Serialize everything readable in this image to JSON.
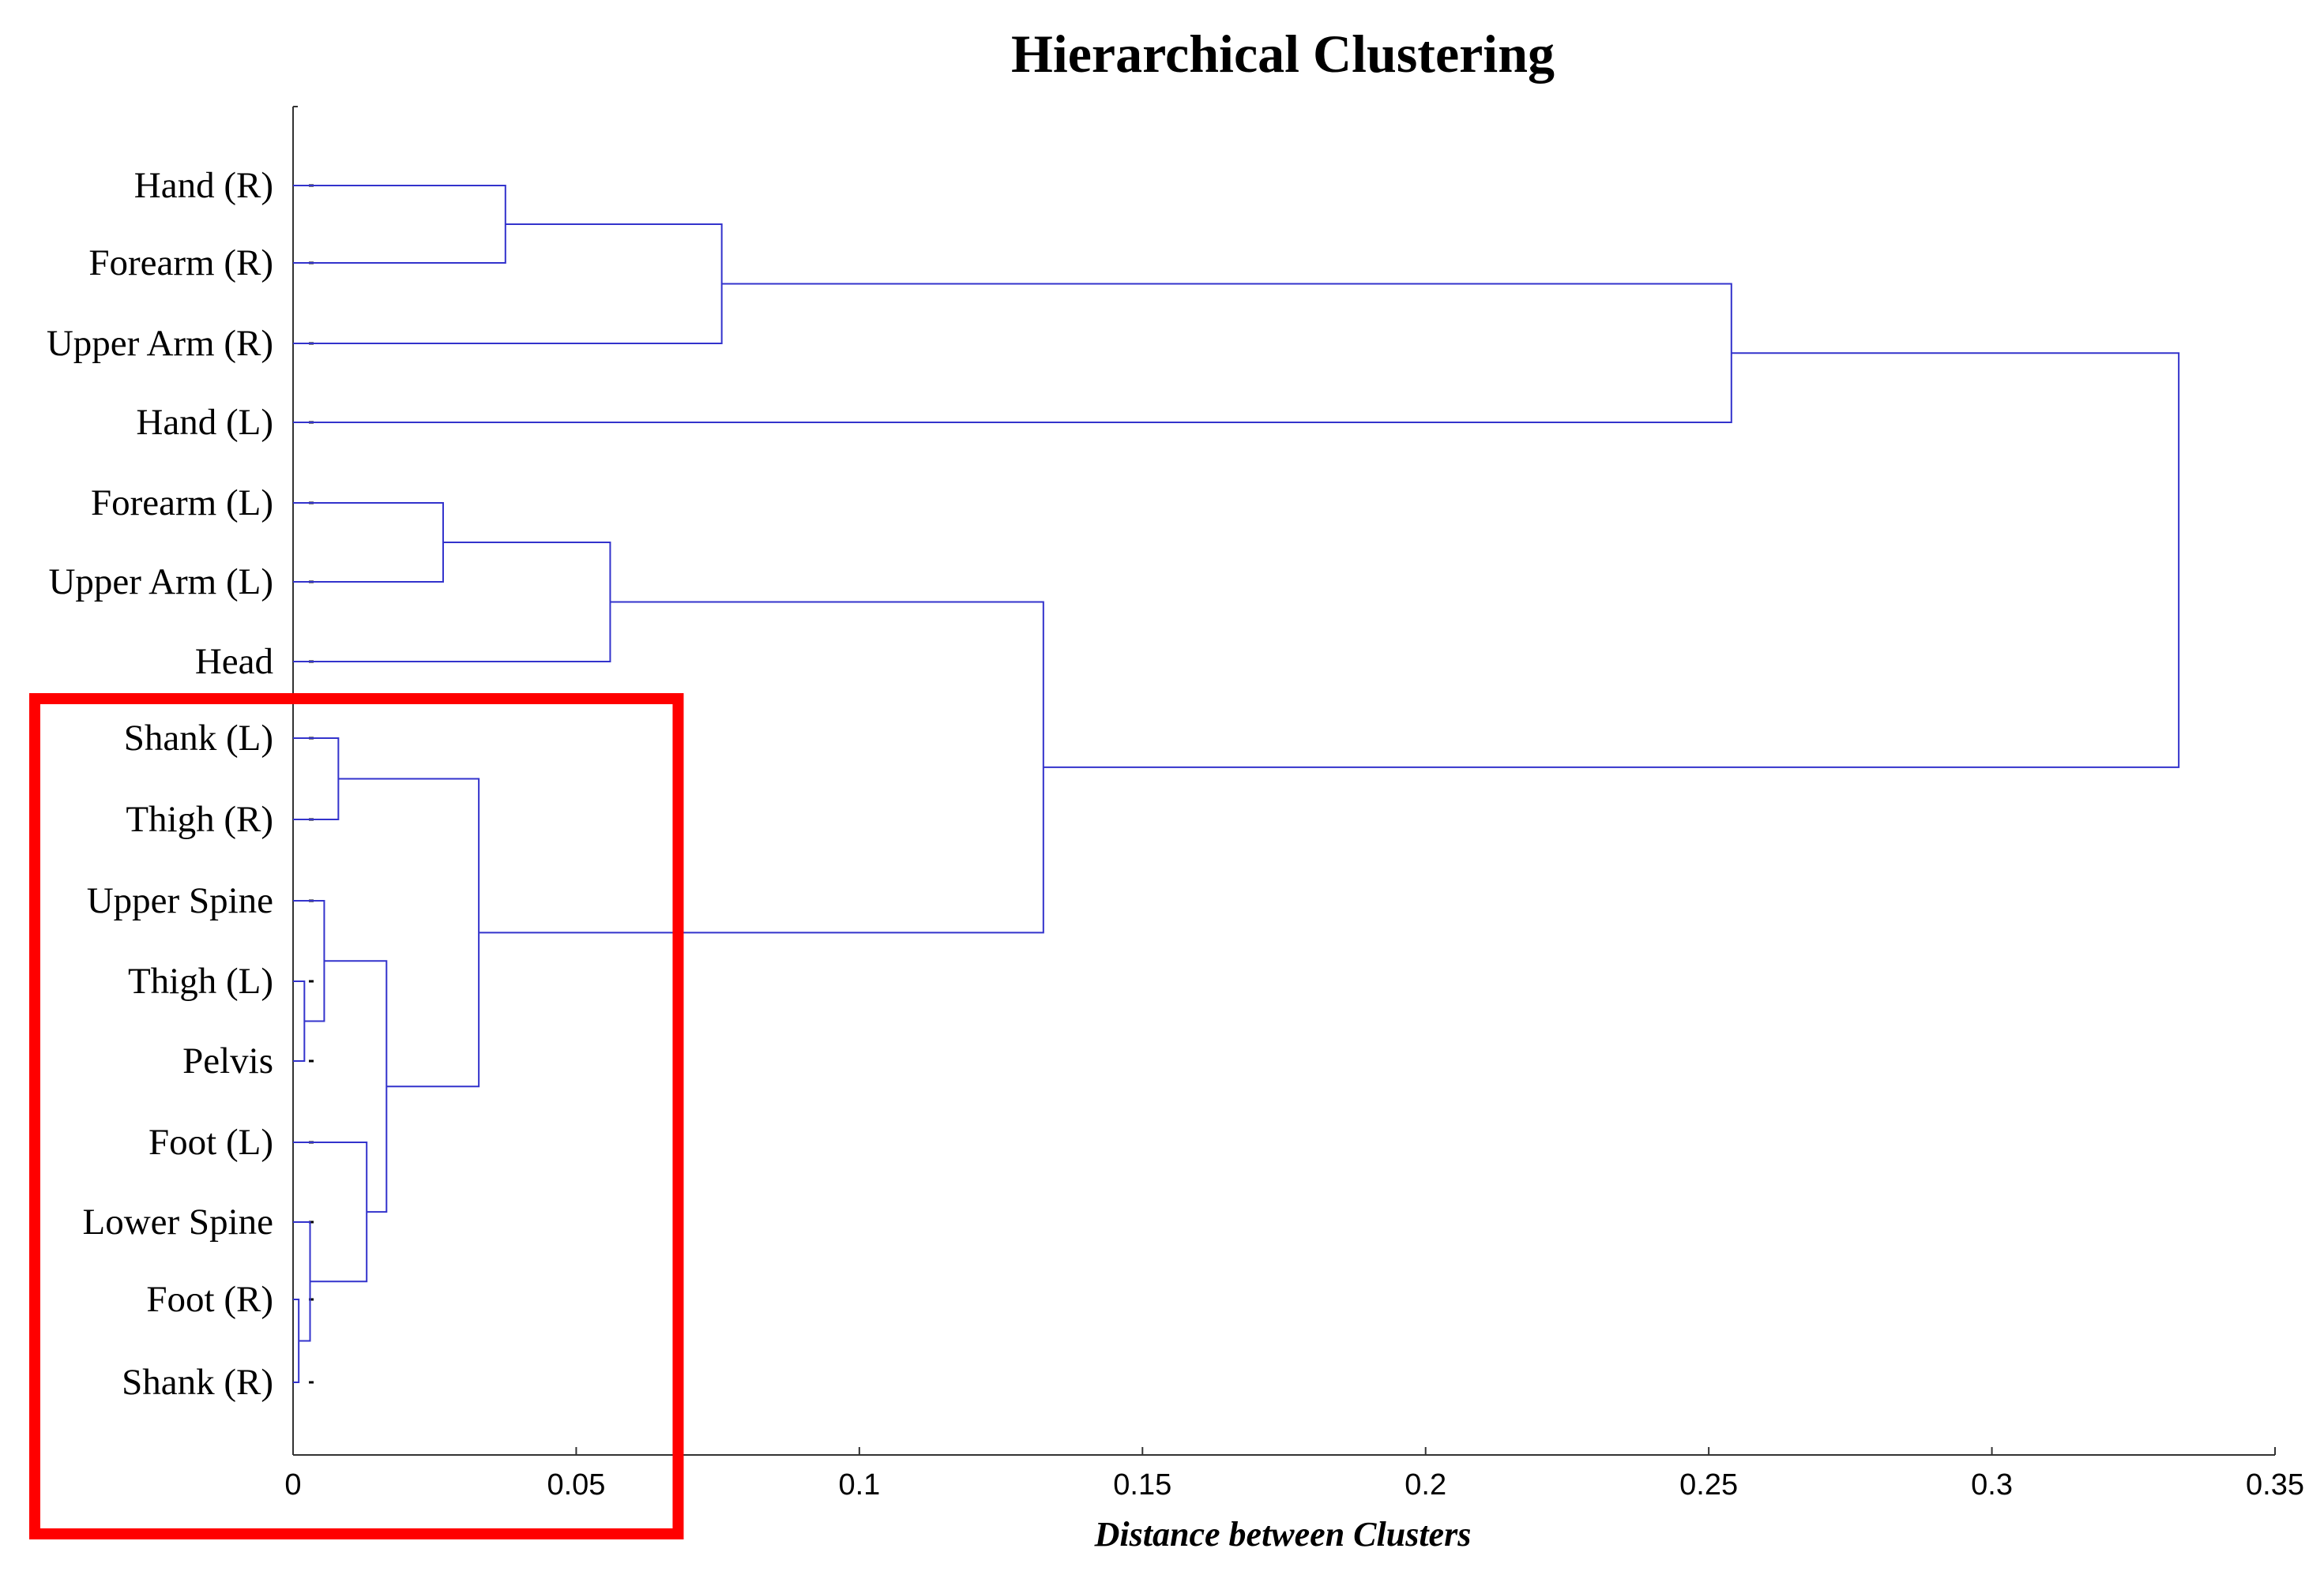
{
  "chart_data": {
    "type": "dendrogram",
    "title": "Hierarchical Clustering",
    "xlabel": "Distance between Clusters",
    "xlim": [
      0,
      0.35
    ],
    "xticks": [
      0,
      0.05,
      0.1,
      0.15,
      0.2,
      0.25,
      0.3,
      0.35
    ],
    "xtick_labels": [
      "0",
      "0.05",
      "0.1",
      "0.15",
      "0.2",
      "0.25",
      "0.3",
      "0.35"
    ],
    "leaf_labels": [
      "Hand (R)",
      "Forearm (R)",
      "Upper Arm (R)",
      "Hand (L)",
      "Forearm (L)",
      "Upper Arm (L)",
      "Head",
      "Shank (L)",
      "Thigh (R)",
      "Upper Spine",
      "Thigh (L)",
      "Pelvis",
      "Foot (L)",
      "Lower Spine",
      "Foot (R)",
      "Shank (R)"
    ],
    "merges": [
      {
        "left": "Foot (R)",
        "right": "Shank (R)",
        "distance": 0.001
      },
      {
        "left": "Thigh (L)",
        "right": "Pelvis",
        "distance": 0.002
      },
      {
        "left": "Lower Spine",
        "right": 0,
        "distance": 0.003
      },
      {
        "left": "Upper Spine",
        "right": 1,
        "distance": 0.0055
      },
      {
        "left": "Shank (L)",
        "right": "Thigh (R)",
        "distance": 0.008
      },
      {
        "left": "Foot (L)",
        "right": 2,
        "distance": 0.013
      },
      {
        "left": 3,
        "right": 5,
        "distance": 0.0165
      },
      {
        "left": "Forearm (L)",
        "right": "Upper Arm (L)",
        "distance": 0.0265
      },
      {
        "left": 4,
        "right": 6,
        "distance": 0.0328
      },
      {
        "left": "Hand (R)",
        "right": "Forearm (R)",
        "distance": 0.0375
      },
      {
        "left": 7,
        "right": "Head",
        "distance": 0.056
      },
      {
        "left": 9,
        "right": "Upper Arm (R)",
        "distance": 0.0757
      },
      {
        "left": 10,
        "right": 8,
        "distance": 0.1325
      },
      {
        "left": 11,
        "right": "Hand (L)",
        "distance": 0.254
      },
      {
        "left": 12,
        "right": 13,
        "distance": 0.333
      }
    ],
    "line_color": "#3333cc",
    "highlight": {
      "color": "#ff0000",
      "leaves": [
        "Shank (L)",
        "Shank (R)"
      ],
      "x_range": [
        0,
        0.068
      ]
    }
  }
}
